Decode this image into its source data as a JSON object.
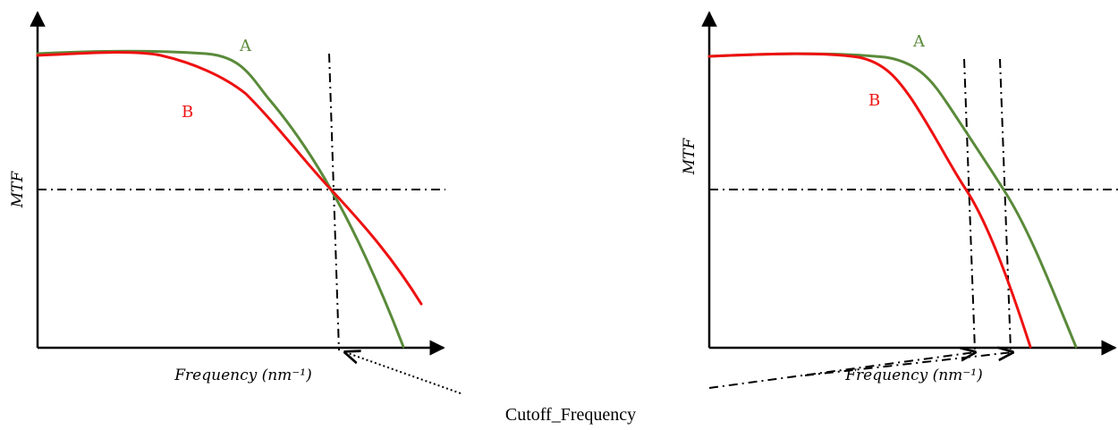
{
  "panels": [
    {
      "y_label": "MTF",
      "x_label": "Frequency (nm⁻¹)",
      "curve_labels": {
        "a": "A",
        "b": "B"
      }
    },
    {
      "y_label": "MTF",
      "x_label": "Frequency (nm⁻¹)",
      "curve_labels": {
        "a": "A",
        "b": "B"
      }
    }
  ],
  "callout": "Cutoff_Frequency",
  "colors": {
    "curve_a": "#5a8a3a",
    "curve_b": "#ee1111",
    "axes": "#000000"
  }
}
